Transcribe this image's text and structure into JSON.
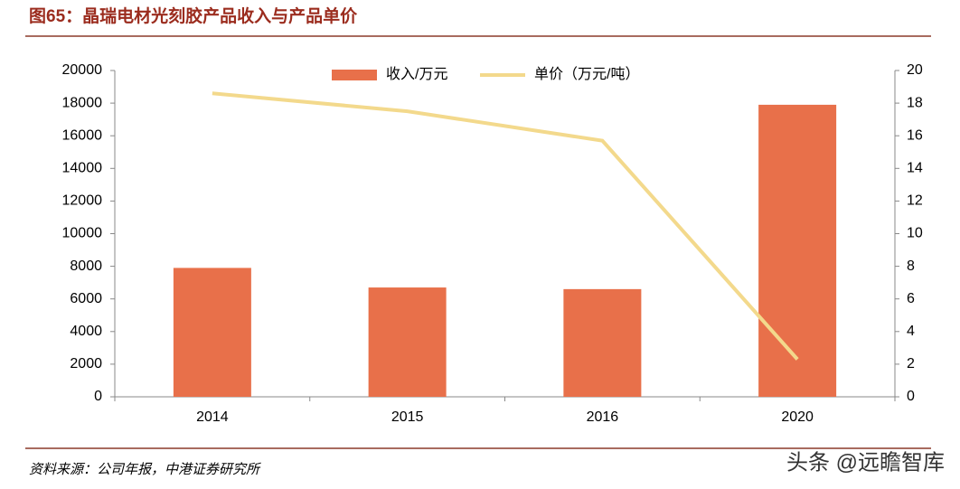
{
  "title": "图65：晶瑞电材光刻胶产品收入与产品单价",
  "source": "资料来源：公司年报，中港证券研究所",
  "watermark": "头条 @远瞻智库",
  "chart_data": {
    "type": "bar",
    "categories": [
      "2014",
      "2015",
      "2016",
      "2020"
    ],
    "series": [
      {
        "name": "收入/万元",
        "type": "bar",
        "color": "#e8704a",
        "values": [
          7900,
          6700,
          6600,
          17900
        ]
      },
      {
        "name": "单价（万元/吨）",
        "type": "line",
        "axis": "y2",
        "color": "#f3d98c",
        "values": [
          18.6,
          17.5,
          15.7,
          2.3
        ]
      }
    ],
    "ylim": [
      0,
      20000
    ],
    "yticks": [
      0,
      2000,
      4000,
      6000,
      8000,
      10000,
      12000,
      14000,
      16000,
      18000,
      20000
    ],
    "y2lim": [
      0,
      20
    ],
    "y2ticks": [
      0,
      2,
      4,
      6,
      8,
      10,
      12,
      14,
      16,
      18,
      20
    ],
    "legend": "top"
  }
}
